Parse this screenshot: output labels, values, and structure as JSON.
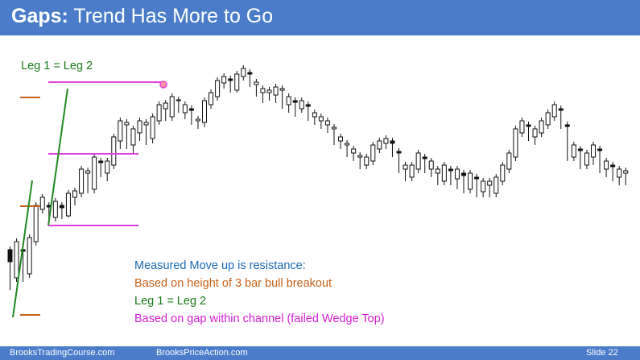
{
  "header": {
    "title_bold": "Gaps:",
    "title_rest": "Trend Has More to Go"
  },
  "chart_labels": {
    "leg_label": "Leg 1 = Leg 2"
  },
  "notes": [
    {
      "text": "Measured Move up is resistance:",
      "color": "#1a6ab4"
    },
    {
      "text": "Based on height of 3 bar bull breakout",
      "color": "#c8621a"
    },
    {
      "text": "Leg 1 = Leg 2",
      "color": "#1a7a1a"
    },
    {
      "text": "Based on gap within channel (failed Wedge Top)",
      "color": "#d41fd4"
    }
  ],
  "footer": {
    "left": "BrooksTradingCourse.com",
    "center": "BrooksPriceAction.com",
    "slide": "Slide 22"
  },
  "colors": {
    "header_bg": "#4a7cc9",
    "magenta": "#e040e0",
    "orange": "#c8621a",
    "green": "#1f8a1f",
    "candle": "#111111"
  },
  "chart_data": {
    "type": "candlestick",
    "title": "",
    "series": [],
    "candles": [
      [
        310,
        325,
        360,
        345
      ],
      [
        345,
        300,
        350,
        310
      ],
      [
        310,
        312,
        350,
        340
      ],
      [
        340,
        295,
        345,
        300
      ],
      [
        300,
        255,
        305,
        260
      ],
      [
        260,
        245,
        265,
        255
      ],
      [
        255,
        257,
        275,
        270
      ],
      [
        270,
        250,
        275,
        255
      ],
      [
        255,
        258,
        272,
        268
      ],
      [
        268,
        240,
        270,
        245
      ],
      [
        245,
        237,
        255,
        240
      ],
      [
        240,
        210,
        245,
        215
      ],
      [
        215,
        212,
        240,
        235
      ],
      [
        235,
        195,
        240,
        200
      ],
      [
        200,
        202,
        220,
        215
      ],
      [
        215,
        200,
        225,
        205
      ],
      [
        205,
        170,
        210,
        175
      ],
      [
        175,
        150,
        185,
        155
      ],
      [
        155,
        152,
        185,
        180
      ],
      [
        180,
        160,
        190,
        165
      ],
      [
        165,
        150,
        175,
        155
      ],
      [
        155,
        152,
        180,
        172
      ],
      [
        172,
        145,
        178,
        150
      ],
      [
        150,
        130,
        155,
        135
      ],
      [
        135,
        128,
        150,
        145
      ],
      [
        145,
        120,
        150,
        125
      ],
      [
        125,
        124,
        140,
        140
      ],
      [
        140,
        130,
        148,
        135
      ],
      [
        135,
        137,
        155,
        150
      ],
      [
        150,
        148,
        160,
        152
      ],
      [
        152,
        125,
        158,
        130
      ],
      [
        130,
        115,
        135,
        120
      ],
      [
        120,
        100,
        125,
        103
      ],
      [
        103,
        95,
        110,
        98
      ],
      [
        98,
        100,
        115,
        112
      ],
      [
        112,
        92,
        115,
        95
      ],
      [
        95,
        85,
        100,
        90
      ],
      [
        90,
        92,
        108,
        105
      ],
      [
        105,
        102,
        120,
        115
      ],
      [
        115,
        110,
        128,
        115
      ],
      [
        115,
        112,
        125,
        118
      ],
      [
        118,
        108,
        128,
        112
      ],
      [
        112,
        110,
        135,
        130
      ],
      [
        130,
        120,
        140,
        125
      ],
      [
        125,
        127,
        145,
        135
      ],
      [
        135,
        125,
        140,
        130
      ],
      [
        130,
        132,
        150,
        145
      ],
      [
        145,
        140,
        155,
        150
      ],
      [
        150,
        145,
        160,
        155
      ],
      [
        155,
        150,
        165,
        160
      ],
      [
        160,
        158,
        180,
        175
      ],
      [
        175,
        170,
        185,
        180
      ],
      [
        180,
        178,
        195,
        190
      ],
      [
        190,
        185,
        200,
        195
      ],
      [
        195,
        193,
        210,
        205
      ],
      [
        205,
        195,
        210,
        200
      ],
      [
        200,
        180,
        205,
        185
      ],
      [
        185,
        175,
        190,
        178
      ],
      [
        178,
        172,
        185,
        175
      ],
      [
        175,
        178,
        195,
        188
      ],
      [
        188,
        190,
        215,
        210
      ],
      [
        210,
        205,
        225,
        220
      ],
      [
        220,
        205,
        225,
        210
      ],
      [
        210,
        190,
        215,
        195
      ],
      [
        195,
        197,
        215,
        210
      ],
      [
        210,
        200,
        220,
        215
      ],
      [
        215,
        210,
        230,
        225
      ],
      [
        225,
        205,
        230,
        210
      ],
      [
        210,
        212,
        230,
        222
      ],
      [
        222,
        210,
        235,
        215
      ],
      [
        215,
        218,
        240,
        235
      ],
      [
        235,
        215,
        240,
        220
      ],
      [
        220,
        222,
        245,
        238
      ],
      [
        238,
        225,
        245,
        230
      ],
      [
        230,
        225,
        245,
        240
      ],
      [
        240,
        220,
        245,
        225
      ],
      [
        225,
        205,
        230,
        210
      ],
      [
        210,
        190,
        215,
        195
      ],
      [
        195,
        160,
        200,
        165
      ],
      [
        165,
        150,
        170,
        155
      ],
      [
        155,
        157,
        175,
        170
      ],
      [
        170,
        160,
        180,
        165
      ],
      [
        165,
        150,
        170,
        155
      ],
      [
        155,
        140,
        160,
        145
      ],
      [
        145,
        130,
        150,
        135
      ],
      [
        135,
        137,
        160,
        155
      ],
      [
        155,
        157,
        200,
        195
      ],
      [
        195,
        180,
        200,
        185
      ],
      [
        185,
        187,
        210,
        205
      ],
      [
        205,
        190,
        210,
        195
      ],
      [
        195,
        180,
        205,
        185
      ],
      [
        185,
        187,
        215,
        210
      ],
      [
        210,
        200,
        220,
        205
      ],
      [
        205,
        207,
        225,
        220
      ],
      [
        220,
        210,
        230,
        215
      ],
      [
        215,
        212,
        230,
        220
      ]
    ]
  }
}
